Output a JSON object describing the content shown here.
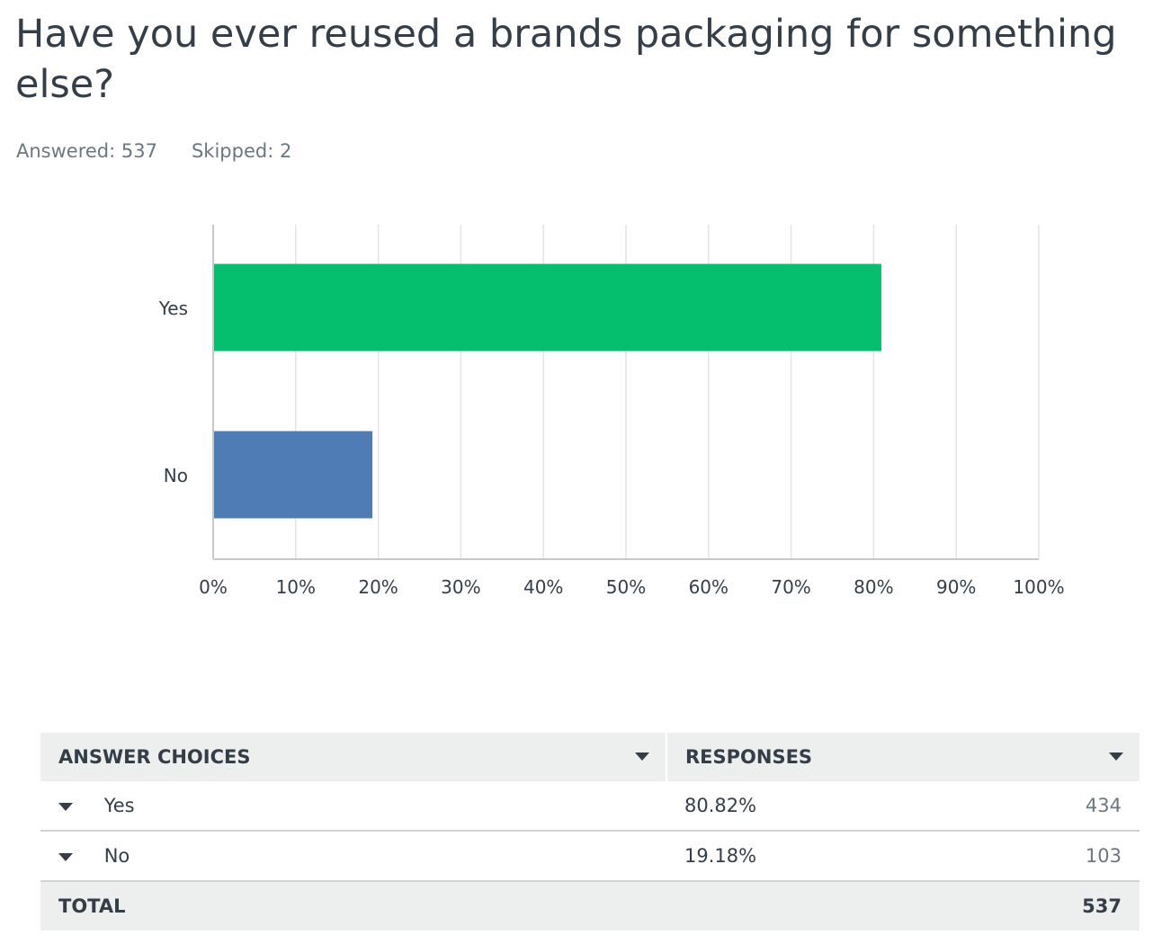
{
  "question": {
    "title": "Have you ever reused a brands packaging for something else?"
  },
  "stats": {
    "answered": "Answered: 537",
    "skipped": "Skipped: 2"
  },
  "chart_data": {
    "type": "bar",
    "orientation": "horizontal",
    "categories": [
      "Yes",
      "No"
    ],
    "values": [
      80.82,
      19.18
    ],
    "bar_colors": [
      "#05bf6f",
      "#507cb6"
    ],
    "xlim": [
      0,
      100
    ],
    "x_ticks": [
      "0%",
      "10%",
      "20%",
      "30%",
      "40%",
      "50%",
      "60%",
      "70%",
      "80%",
      "90%",
      "100%"
    ],
    "grid": true,
    "title": "",
    "xlabel": "",
    "ylabel": ""
  },
  "table": {
    "headers": {
      "answers": "ANSWER CHOICES",
      "responses": "RESPONSES"
    },
    "rows": [
      {
        "label": "Yes",
        "percent": "80.82%",
        "count": "434"
      },
      {
        "label": "No",
        "percent": "19.18%",
        "count": "103"
      }
    ],
    "total": {
      "label": "TOTAL",
      "count": "537"
    }
  },
  "colors": {
    "grid": "#e3e4e5",
    "axis": "#c7c9cb",
    "text": "#333e48",
    "muted": "#6b787f"
  }
}
